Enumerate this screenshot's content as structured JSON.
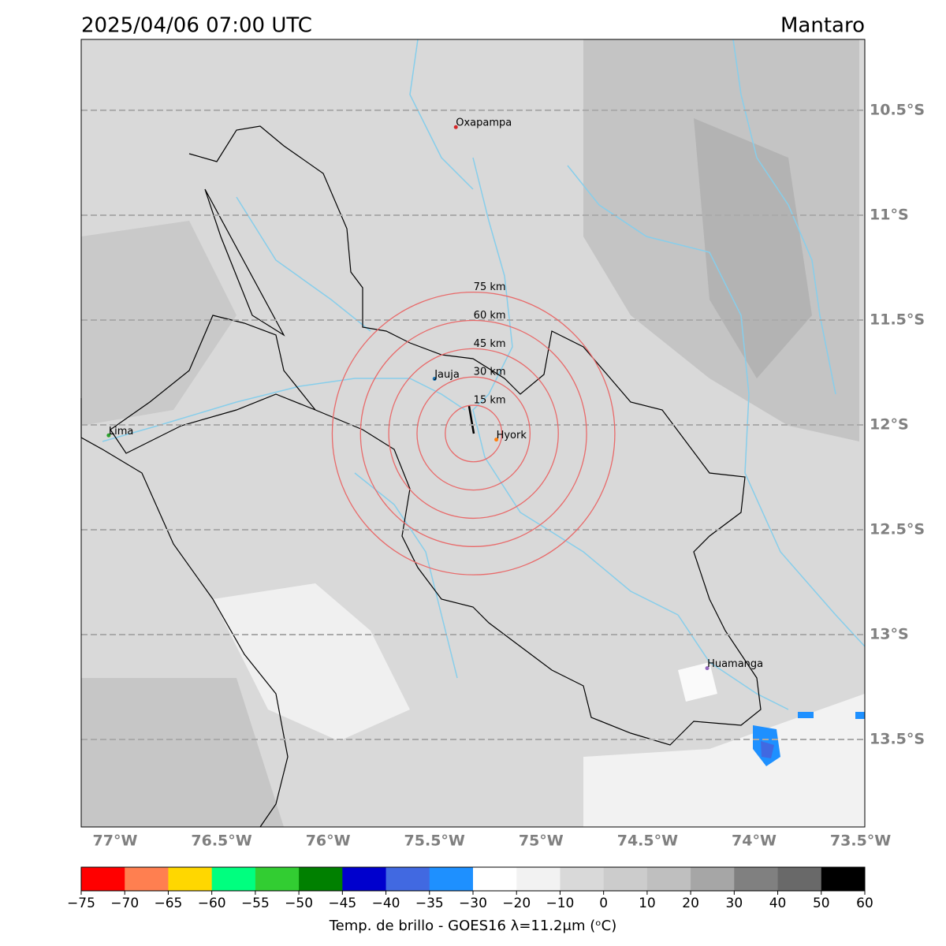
{
  "header": {
    "title": "2025/04/06 07:00 UTC",
    "region": "Mantaro"
  },
  "map": {
    "xlim": [
      -77.159,
      -73.48
    ],
    "ylim": [
      -13.917,
      -10.162
    ],
    "xticks": [
      {
        "value": -77,
        "label": "77°W"
      },
      {
        "value": -76.5,
        "label": "76.5°W"
      },
      {
        "value": -76,
        "label": "76°W"
      },
      {
        "value": -75.5,
        "label": "75.5°W"
      },
      {
        "value": -75,
        "label": "75°W"
      },
      {
        "value": -74.5,
        "label": "74.5°W"
      },
      {
        "value": -74,
        "label": "74°W"
      },
      {
        "value": -73.5,
        "label": "73.5°W"
      }
    ],
    "yticks": [
      {
        "value": -10.5,
        "label": "10.5°S"
      },
      {
        "value": -11,
        "label": "11°S"
      },
      {
        "value": -11.5,
        "label": "11.5°S"
      },
      {
        "value": -12,
        "label": "12°S"
      },
      {
        "value": -12.5,
        "label": "12.5°S"
      },
      {
        "value": -13,
        "label": "13°S"
      },
      {
        "value": -13.5,
        "label": "13.5°S"
      }
    ],
    "rings": {
      "center": [
        -75.317,
        -12.041
      ],
      "radii": [
        15,
        30,
        45,
        60,
        75
      ],
      "labels": [
        "15 km",
        "30 km",
        "45 km",
        "60 km",
        "75 km"
      ],
      "color": "#e86a6a"
    },
    "places": [
      {
        "name": "Oxapampa",
        "lon": -75.4,
        "lat": -10.58,
        "color": "#d62728"
      },
      {
        "name": "Jauja",
        "lon": -75.5,
        "lat": -11.78,
        "color": "#1f77b4"
      },
      {
        "name": "Hyork",
        "lon": -75.21,
        "lat": -12.07,
        "color": "#ff7f0e"
      },
      {
        "name": "Lima",
        "lon": -77.03,
        "lat": -12.05,
        "color": "#2ca02c"
      },
      {
        "name": "Huamanga",
        "lon": -74.22,
        "lat": -13.16,
        "color": "#9467bd"
      }
    ]
  },
  "colorbar": {
    "ticks": [
      {
        "value": -75,
        "label": "−75"
      },
      {
        "value": -70,
        "label": "−70"
      },
      {
        "value": -65,
        "label": "−65"
      },
      {
        "value": -60,
        "label": "−60"
      },
      {
        "value": -55,
        "label": "−55"
      },
      {
        "value": -50,
        "label": "−50"
      },
      {
        "value": -45,
        "label": "−45"
      },
      {
        "value": -40,
        "label": "−40"
      },
      {
        "value": -35,
        "label": "−35"
      },
      {
        "value": -30,
        "label": "−30"
      },
      {
        "value": -20,
        "label": "−20"
      },
      {
        "value": -10,
        "label": "−10"
      },
      0,
      10,
      20,
      30,
      40,
      50,
      60
    ],
    "colors": [
      "#ff0000",
      "#ff7f50",
      "#ffd700",
      "#00ff7f",
      "#32cd32",
      "#008000",
      "#0000cd",
      "#4169e1",
      "#1e90ff",
      "#ffffff",
      "#f2f2f2",
      "#d9d9d9",
      "#cccccc",
      "#bfbfbf",
      "#a6a6a6",
      "#808080",
      "#696969",
      "#000000"
    ],
    "label": "Temp. de brillo - GOES16 λ=11.2μm (ᵒC)"
  }
}
